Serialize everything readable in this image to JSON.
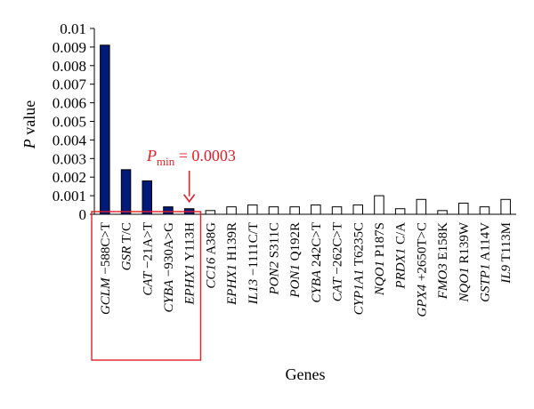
{
  "chart_data": {
    "type": "bar",
    "ylabel": "P value",
    "ylabel_italic_part": "P",
    "ylabel_rest": " value",
    "xlabel": "Genes",
    "ylim": [
      0,
      0.01
    ],
    "yticks": [
      "0",
      "0.001",
      "0.002",
      "0.003",
      "0.004",
      "0.005",
      "0.006",
      "0.007",
      "0.008",
      "0.009",
      "0.01"
    ],
    "grid": false,
    "legend": "none",
    "categories": [
      {
        "gene": "GCLM",
        "variant": "−588C>T"
      },
      {
        "gene": "GSR",
        "variant": "T/C"
      },
      {
        "gene": "CAT",
        "variant": "−21A>T"
      },
      {
        "gene": "CYBA",
        "variant": "−930A>G"
      },
      {
        "gene": "EPHX1",
        "variant": "Y113H"
      },
      {
        "gene": "CC16",
        "variant": "A38G"
      },
      {
        "gene": "EPHX1",
        "variant": "H139R"
      },
      {
        "gene": "IL13",
        "variant": "−1111C/T"
      },
      {
        "gene": "PON2",
        "variant": "S311C"
      },
      {
        "gene": "PON1",
        "variant": "Q192R"
      },
      {
        "gene": "CYBA",
        "variant": "242C>T"
      },
      {
        "gene": "CAT",
        "variant": "−262C>T"
      },
      {
        "gene": "CYP1A1",
        "variant": "T6235C"
      },
      {
        "gene": "NQO1",
        "variant": "P187S"
      },
      {
        "gene": "PRDX1",
        "variant": "C/A"
      },
      {
        "gene": "GPX4",
        "variant": "+2650T>C"
      },
      {
        "gene": "FMO3",
        "variant": "E158K"
      },
      {
        "gene": "NQO1",
        "variant": "R139W"
      },
      {
        "gene": "GSTP1",
        "variant": "A114V"
      },
      {
        "gene": "IL9",
        "variant": "T113M"
      }
    ],
    "values": [
      0.0091,
      0.0024,
      0.0018,
      0.0004,
      0.0003,
      0.0002,
      0.0004,
      0.0005,
      0.0004,
      0.0004,
      0.0005,
      0.0004,
      0.0005,
      0.001,
      0.0003,
      0.0008,
      0.0002,
      0.0006,
      0.0004,
      0.0008
    ],
    "significant_count": 5,
    "colors": {
      "significant": "#001a7a",
      "nonsignificant": "#ffffff",
      "outline": "#000000",
      "highlight": "#e41e26"
    },
    "annotation": {
      "p_symbol": "P",
      "subscript": "min",
      "text": " = 0.0003",
      "target_index": 4,
      "arrow": "↓"
    },
    "highlight_box_range": [
      0,
      4
    ]
  }
}
